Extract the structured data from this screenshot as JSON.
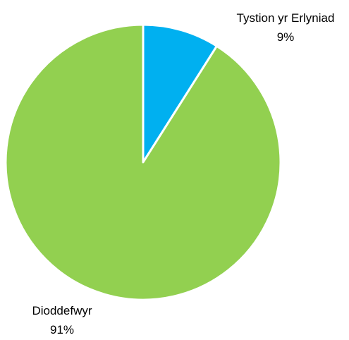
{
  "chart_data": {
    "type": "pie",
    "title": "",
    "start_angle_deg": 0,
    "direction": "clockwise",
    "slices": [
      {
        "name": "Tystion yr Erlyniad",
        "value": 9,
        "value_label": "9%",
        "color": "#00b0f0"
      },
      {
        "name": "Dioddefwyr",
        "value": 91,
        "value_label": "91%",
        "color": "#92d050"
      }
    ],
    "slice_border_color": "#ffffff",
    "legend": "none"
  }
}
